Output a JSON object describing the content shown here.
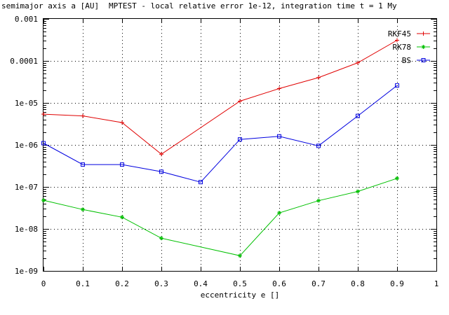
{
  "chart_data": {
    "type": "line",
    "title": "MPTEST - local relative error 1e-12, integration time t = 1 My",
    "ylabel": "semimajor axis a [AU]",
    "xlabel": "eccentricity e []",
    "xlim": [
      0,
      1
    ],
    "ylim": [
      1e-09,
      0.001
    ],
    "yscale": "log",
    "grid": true,
    "legend_position": "top-right",
    "x_ticks": [
      0,
      0.1,
      0.2,
      0.3,
      0.4,
      0.5,
      0.6,
      0.7,
      0.8,
      0.9,
      1
    ],
    "x_tick_labels": [
      "0",
      "0.1",
      "0.2",
      "0.3",
      "0.4",
      "0.5",
      "0.6",
      "0.7",
      "0.8",
      "0.9",
      "1"
    ],
    "y_ticks": [
      1e-09,
      1e-08,
      1e-07,
      1e-06,
      1e-05,
      0.0001,
      0.001
    ],
    "y_tick_labels": [
      "1e-09",
      "1e-08",
      "1e-07",
      "1e-06",
      "1e-05",
      "0.0001",
      "0.001"
    ],
    "series": [
      {
        "name": "RKF45",
        "color": "#e00000",
        "marker": "plus",
        "x": [
          0,
          0.1,
          0.2,
          0.3,
          0.5,
          0.6,
          0.7,
          0.8,
          0.9
        ],
        "y": [
          5.4e-06,
          4.9e-06,
          3.4e-06,
          6e-07,
          1.1e-05,
          2.2e-05,
          4e-05,
          9e-05,
          0.00031
        ]
      },
      {
        "name": "RK78",
        "color": "#00c000",
        "marker": "cross",
        "x": [
          0,
          0.1,
          0.2,
          0.3,
          0.5,
          0.6,
          0.7,
          0.8,
          0.9
        ],
        "y": [
          4.8e-08,
          2.9e-08,
          1.9e-08,
          6e-09,
          2.3e-09,
          2.4e-08,
          4.7e-08,
          7.8e-08,
          1.6e-07
        ]
      },
      {
        "name": "BS",
        "color": "#0000e0",
        "marker": "square",
        "x": [
          0,
          0.1,
          0.2,
          0.3,
          0.4,
          0.5,
          0.6,
          0.7,
          0.8,
          0.9
        ],
        "y": [
          1.1e-06,
          3.4e-07,
          3.4e-07,
          2.3e-07,
          1.3e-07,
          1.35e-06,
          1.6e-06,
          9.5e-07,
          4.9e-06,
          2.6e-05
        ]
      }
    ]
  }
}
